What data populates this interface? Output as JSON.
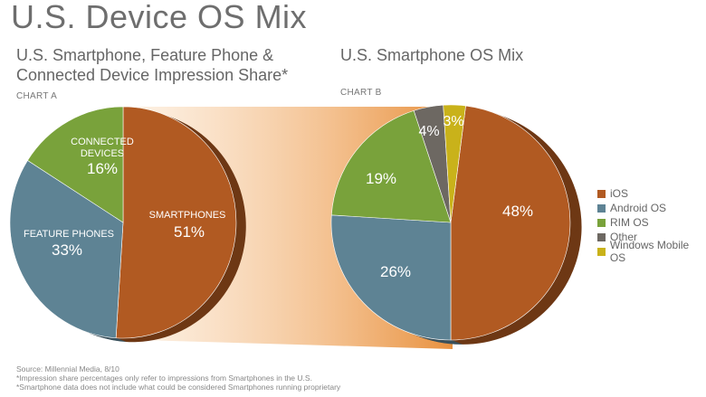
{
  "page_title": "U.S. Device OS Mix",
  "chart_data": [
    {
      "type": "pie",
      "label": "CHART A",
      "title": "U.S. Smartphone, Feature Phone & Connected Device Impression Share*",
      "slices": [
        {
          "name": "SMARTPHONES",
          "value": 51,
          "display": "51%",
          "color": "#b15a22"
        },
        {
          "name": "FEATURE PHONES",
          "value": 33,
          "display": "33%",
          "color": "#5e8394"
        },
        {
          "name": "CONNECTED DEVICES",
          "value": 16,
          "display": "16%",
          "color": "#79a23b"
        }
      ]
    },
    {
      "type": "pie",
      "label": "CHART B",
      "title": "U.S. Smartphone OS Mix",
      "slices": [
        {
          "name": "iOS",
          "value": 48,
          "display": "48%",
          "color": "#b15a22"
        },
        {
          "name": "Android OS",
          "value": 26,
          "display": "26%",
          "color": "#5e8394"
        },
        {
          "name": "RIM OS",
          "value": 19,
          "display": "19%",
          "color": "#79a23b"
        },
        {
          "name": "Other",
          "value": 4,
          "display": "4%",
          "color": "#6d6862"
        },
        {
          "name": "Windows Mobile OS",
          "value": 3,
          "display": "3%",
          "color": "#c9b21a"
        }
      ],
      "legend_placement": "right"
    }
  ],
  "footer": {
    "source": "Source: Millennial Media, 8/10",
    "note1": "*Impression share percentages only refer to impressions from Smartphones in the U.S.",
    "note2": "*Smartphone data does not include what could be considered Smartphones running proprietary"
  }
}
